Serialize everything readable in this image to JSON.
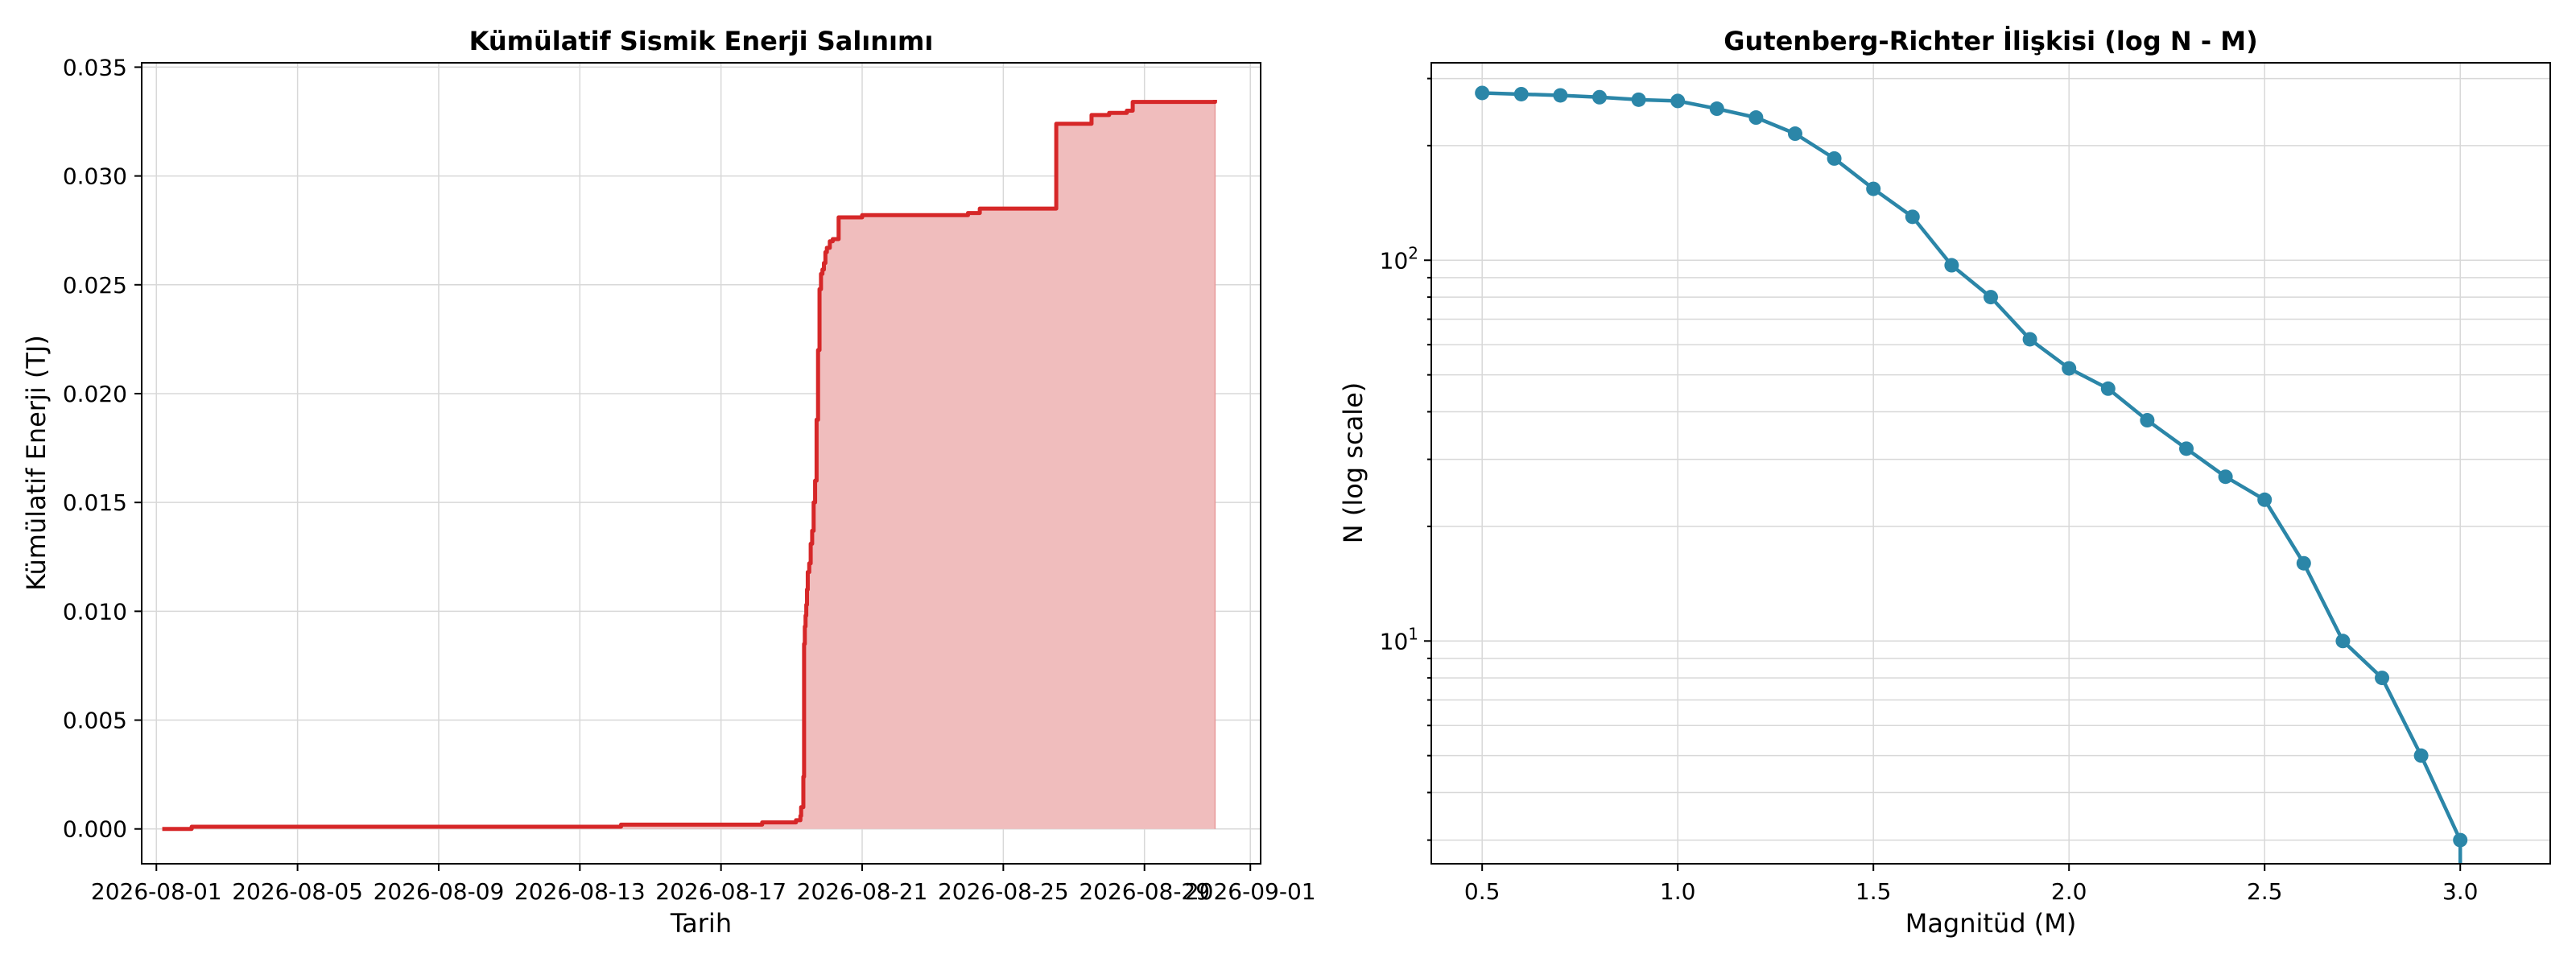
{
  "chart_data": [
    {
      "type": "area",
      "title": "Kümülatif Sismik Enerji Salınımı",
      "xlabel": "Tarih",
      "ylabel": "Kümülatif Enerji (TJ)",
      "x_ticks": [
        "2026-08-01",
        "2026-08-05",
        "2026-08-09",
        "2026-08-13",
        "2026-08-17",
        "2026-08-21",
        "2026-08-25",
        "2026-08-29",
        "2026-09-01"
      ],
      "y_ticks": [
        "0.000",
        "0.005",
        "0.010",
        "0.015",
        "0.020",
        "0.025",
        "0.030",
        "0.035"
      ],
      "xlim": [
        "2026-07-31 14:00",
        "2026-09-01 07:00"
      ],
      "ylim": [
        -0.0016,
        0.0352
      ],
      "grid": true,
      "line_color": "#d62728",
      "fill_color": "#f0bdbd",
      "x": [
        "2026-08-01 04:00",
        "2026-08-01 18:00",
        "2026-08-02 00:00",
        "2026-08-05 00:00",
        "2026-08-10 00:00",
        "2026-08-14 00:00",
        "2026-08-14 04:00",
        "2026-08-18 00:00",
        "2026-08-18 04:00",
        "2026-08-19 03:00",
        "2026-08-19 06:00",
        "2026-08-19 06:30",
        "2026-08-19 08:00",
        "2026-08-19 08:30",
        "2026-08-19 09:00",
        "2026-08-19 09:30",
        "2026-08-19 10:00",
        "2026-08-19 10:30",
        "2026-08-19 11:00",
        "2026-08-19 12:00",
        "2026-08-19 13:00",
        "2026-08-19 14:00",
        "2026-08-19 15:00",
        "2026-08-19 16:00",
        "2026-08-19 17:00",
        "2026-08-19 18:00",
        "2026-08-19 19:00",
        "2026-08-19 20:00",
        "2026-08-19 21:00",
        "2026-08-19 22:00",
        "2026-08-19 23:00",
        "2026-08-20 00:00",
        "2026-08-20 02:00",
        "2026-08-20 03:00",
        "2026-08-20 04:00",
        "2026-08-20 06:00",
        "2026-08-20 08:00",
        "2026-08-20 10:00",
        "2026-08-21 00:00",
        "2026-08-21 12:00",
        "2026-08-22 00:00",
        "2026-08-24 00:00",
        "2026-08-24 08:00",
        "2026-08-24 12:00",
        "2026-08-26 00:00",
        "2026-08-26 12:00",
        "2026-08-27 12:00",
        "2026-08-28 00:00",
        "2026-08-28 12:00",
        "2026-08-28 16:00",
        "2026-08-29 00:00",
        "2026-08-31 00:00"
      ],
      "y": [
        0.0,
        0.0,
        0.0001,
        0.0001,
        0.0001,
        0.0001,
        0.0002,
        0.0002,
        0.0003,
        0.0004,
        0.0006,
        0.001,
        0.0024,
        0.0085,
        0.0093,
        0.0098,
        0.0103,
        0.011,
        0.0118,
        0.0122,
        0.0131,
        0.0137,
        0.015,
        0.016,
        0.0188,
        0.022,
        0.0248,
        0.0255,
        0.0257,
        0.026,
        0.0265,
        0.0267,
        0.027,
        0.027,
        0.0271,
        0.0271,
        0.0281,
        0.0281,
        0.0282,
        0.0282,
        0.0282,
        0.0283,
        0.0285,
        0.0285,
        0.0285,
        0.0324,
        0.0328,
        0.0329,
        0.033,
        0.0334,
        0.0334,
        0.0335
      ]
    },
    {
      "type": "line",
      "title": "Gutenberg-Richter İlişkisi (log N - M)",
      "xlabel": "Magnitüd (M)",
      "ylabel": "N (log scale)",
      "yscale": "log",
      "xlim": [
        0.37,
        3.23
      ],
      "ylim": [
        2.6,
        330
      ],
      "x_ticks": [
        "0.5",
        "1.0",
        "1.5",
        "2.0",
        "2.5",
        "3.0"
      ],
      "y_ticks": [
        "10^1",
        "10^2"
      ],
      "y_tick_base": "10",
      "y_tick_exponents": [
        "1",
        "2"
      ],
      "grid": true,
      "line_color": "#2b86a8",
      "x": [
        0.5,
        0.6,
        0.7,
        0.8,
        0.9,
        1.0,
        1.1,
        1.2,
        1.3,
        1.4,
        1.5,
        1.6,
        1.7,
        1.8,
        1.9,
        2.0,
        2.1,
        2.2,
        2.3,
        2.4,
        2.5,
        2.6,
        2.7,
        2.8,
        2.9,
        3.0
      ],
      "y": [
        275,
        273,
        271,
        268,
        264,
        262,
        250,
        237,
        215,
        185,
        154,
        130,
        97,
        80,
        62,
        52,
        46,
        38,
        32,
        27,
        23.5,
        16,
        10,
        8,
        5,
        3
      ]
    }
  ]
}
